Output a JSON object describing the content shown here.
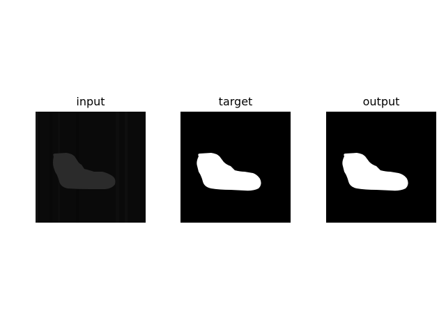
{
  "panels": [
    {
      "title": "input",
      "image": "grayscale-input-scan-dark-blob"
    },
    {
      "title": "target",
      "image": "binary-mask-target-blob"
    },
    {
      "title": "output",
      "image": "binary-mask-predicted-blob"
    }
  ],
  "colors": {
    "background": "#000000",
    "input_blob": "#2a2a2a",
    "mask": "#ffffff"
  }
}
